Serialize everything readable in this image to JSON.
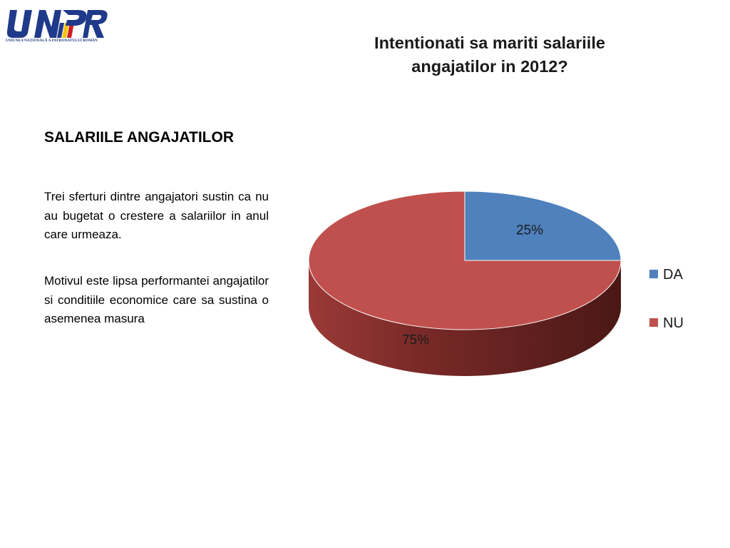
{
  "logo": {
    "text": "UNPR",
    "caption": "UNIUNEA NAȚIONALĂ A PATRONATULUI ROMÂN"
  },
  "title": "Intentionati sa mariti salariile angajatilor in 2012?",
  "section": {
    "heading": "SALARIILE ANGAJATILOR",
    "paragraphs": [
      "Trei sferturi dintre angajatori sustin ca nu  au bugetat o crestere a salariilor in anul  care urmeaza.",
      "Motivul este lipsa performantei angajatilor si conditiile economice care sa sustina o asemenea masura"
    ]
  },
  "chart_data": {
    "type": "pie",
    "title": "Intentionati sa mariti salariile angajatilor in 2012?",
    "categories": [
      "DA",
      "NU"
    ],
    "values": [
      25,
      75
    ],
    "data_labels": [
      "25%",
      "75%"
    ],
    "colors": [
      "#4f81bd",
      "#c0504d"
    ],
    "style": "3d",
    "legend_position": "right"
  }
}
